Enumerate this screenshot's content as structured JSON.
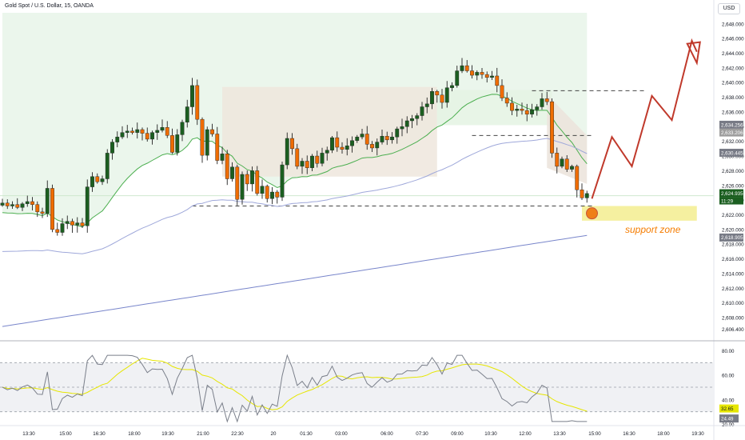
{
  "header": {
    "title": "Gold Spot / U.S. Dollar, 15, OANDA",
    "currency": "USD"
  },
  "colors": {
    "up": "#1b5e20",
    "down": "#ef6c00",
    "ma1": "#4caf50",
    "ma2": "#9fa8da",
    "ma3": "#7986cb",
    "rsi": "#9fa8da",
    "rsi_ma": "#e6e600",
    "arrow": "#c0392b",
    "zone": "#f5f0a0"
  },
  "chart_data": [
    {
      "type": "candlestick",
      "title": "Gold Spot / U.S. Dollar, 15, OANDA",
      "ylabel": "USD",
      "ylim": [
        2605.5,
        2649.5
      ],
      "y_ticks": [
        2606.4,
        2608,
        2610,
        2612,
        2614,
        2616,
        2618,
        2620,
        2622,
        2624,
        2626,
        2628,
        2630,
        2632,
        2634,
        2636,
        2638,
        2640,
        2642,
        2644,
        2646,
        2648
      ],
      "y_tick_labels": [
        "2,606.400",
        "2,608.000",
        "2,610.000",
        "2,612.000",
        "2,614.000",
        "2,616.000",
        "2,618.000",
        "2,620.000",
        "2,622.000",
        "2,624.000",
        "2,626.000",
        "2,628.000",
        "2,630.000",
        "2,632.000",
        "2,634.000",
        "2,636.000",
        "2,638.000",
        "2,640.000",
        "2,642.000",
        "2,644.000",
        "2,646.000",
        "2,648.000"
      ],
      "x_labels": [
        "13:30",
        "15:00",
        "16:30",
        "18:00",
        "19:30",
        "21:00",
        "22:30",
        "20",
        "01:30",
        "03:00",
        "06:00",
        "07:30",
        "09:00",
        "10:30",
        "12:00",
        "13:30",
        "15:00",
        "16:30",
        "18:00",
        "19:30"
      ],
      "close_series": [
        2623.6,
        2623.2,
        2623.4,
        2623.0,
        2623.5,
        2623.8,
        2623.4,
        2622.4,
        2622.2,
        2625.6,
        2620.0,
        2619.6,
        2620.8,
        2621.1,
        2620.6,
        2620.9,
        2620.5,
        2625.8,
        2627.2,
        2626.5,
        2626.9,
        2630.4,
        2631.9,
        2632.6,
        2633.2,
        2633.4,
        2633.2,
        2633.6,
        2633.1,
        2632.3,
        2633.2,
        2633.5,
        2633.9,
        2632.8,
        2630.5,
        2632.9,
        2634.6,
        2636.7,
        2639.6,
        2635.0,
        2630.1,
        2633.6,
        2633.0,
        2629.4,
        2630.3,
        2626.9,
        2628.5,
        2624.1,
        2627.5,
        2626.2,
        2628.0,
        2624.9,
        2625.9,
        2624.2,
        2625.1,
        2624.4,
        2628.8,
        2632.4,
        2631.0,
        2628.6,
        2629.3,
        2628.4,
        2630.0,
        2629.0,
        2630.4,
        2630.8,
        2632.5,
        2631.2,
        2630.9,
        2631.4,
        2632.1,
        2632.6,
        2633.0,
        2631.6,
        2631.1,
        2631.9,
        2632.7,
        2632.2,
        2632.6,
        2633.7,
        2634.0,
        2634.8,
        2635.1,
        2635.5,
        2636.7,
        2637.1,
        2638.8,
        2638.3,
        2637.3,
        2639.3,
        2639.6,
        2641.6,
        2642.3,
        2641.6,
        2641.0,
        2641.4,
        2641.1,
        2640.7,
        2640.9,
        2639.6,
        2637.9,
        2637.2,
        2636.2,
        2636.4,
        2636.2,
        2635.7,
        2636.3,
        2636.7,
        2637.8,
        2637.4,
        2630.4,
        2628.6,
        2629.6,
        2628.2,
        2628.6,
        2625.4,
        2624.3,
        2624.9
      ],
      "price_labels": [
        {
          "value": 2634.256,
          "label": "2,634.256",
          "color": "#787b86"
        },
        {
          "value": 2633.365,
          "label": "2,633.365",
          "color": "#787b86"
        },
        {
          "value": 2633.206,
          "label": "2,633.206",
          "color": "#9e9e9e"
        },
        {
          "value": 2630.445,
          "label": "2,630.445",
          "color": "#787b86"
        },
        {
          "value": 2624.935,
          "label": "2,624.935",
          "color": "#1b5e20"
        },
        {
          "value": 2618.905,
          "label": "2,618.905",
          "color": "#787b86"
        }
      ],
      "countdown": "11:29",
      "projection": [
        [
          0,
          2624.2
        ],
        [
          4,
          2632.6
        ],
        [
          8,
          2628.6
        ],
        [
          12,
          2638.2
        ],
        [
          16,
          2634.9
        ],
        [
          20,
          2645.7
        ],
        [
          21,
          2644.2
        ]
      ],
      "annotation": {
        "label": "support zone"
      }
    },
    {
      "type": "line",
      "name": "RSI",
      "ylim": [
        20,
        80
      ],
      "y_ticks": [
        80,
        60,
        40,
        20
      ],
      "y_tick_labels": [
        "80.00",
        "60.00",
        "40.00",
        "20.00"
      ],
      "bands": [
        70,
        50,
        30
      ],
      "value_labels": [
        {
          "value": 32.65,
          "label": "32.65",
          "color": "#e6e600"
        },
        {
          "value": 24.49,
          "label": "24.49",
          "color": "#787b86"
        }
      ]
    }
  ]
}
